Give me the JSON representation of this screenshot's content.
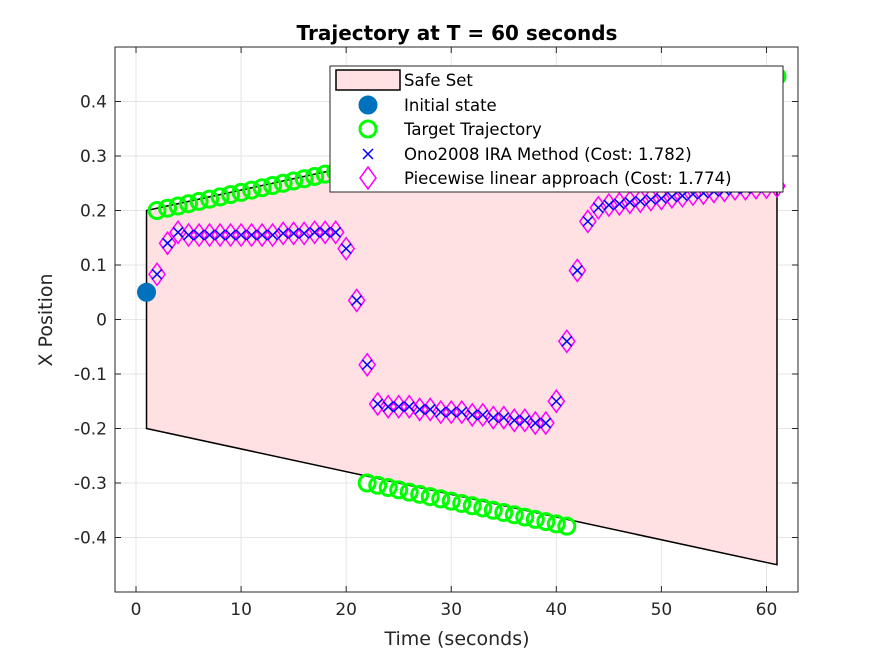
{
  "chart_data": {
    "type": "scatter",
    "title": "Trajectory at T = 60 seconds",
    "xlabel": "Time (seconds)",
    "ylabel": "X Position",
    "xlim": [
      -2,
      63
    ],
    "ylim": [
      -0.5,
      0.5
    ],
    "xticks": [
      0,
      10,
      20,
      30,
      40,
      50,
      60
    ],
    "yticks": [
      -0.4,
      -0.3,
      -0.2,
      -0.1,
      0,
      0.1,
      0.2,
      0.3,
      0.4
    ],
    "xtick_labels": [
      "0",
      "10",
      "20",
      "30",
      "40",
      "50",
      "60"
    ],
    "ytick_labels": [
      "-0.4",
      "-0.3",
      "-0.2",
      "-0.1",
      "0",
      "0.1",
      "0.2",
      "0.3",
      "0.4"
    ],
    "grid": true,
    "legend_position": "top-right",
    "safe_set": {
      "name": "Safe Set",
      "polygon": [
        [
          1,
          0.2
        ],
        [
          61,
          0.45
        ],
        [
          61,
          -0.45
        ],
        [
          1,
          -0.2
        ]
      ],
      "fill": "#ffe0e3",
      "edge": "#000000"
    },
    "series": [
      {
        "name": "Initial state",
        "marker": "filled-circle",
        "color": "#0072bd",
        "x": [
          1
        ],
        "y": [
          0.05
        ]
      },
      {
        "name": "Target Trajectory",
        "marker": "circle",
        "color": "#00ff00",
        "x": [
          2,
          3,
          4,
          5,
          6,
          7,
          8,
          9,
          10,
          11,
          12,
          13,
          14,
          15,
          16,
          17,
          18,
          19,
          20,
          21,
          22,
          23,
          24,
          25,
          26,
          27,
          28,
          29,
          30,
          31,
          32,
          33,
          34,
          35,
          36,
          37,
          38,
          39,
          40,
          41,
          42,
          43,
          44,
          45,
          46,
          47,
          48,
          49,
          50,
          51,
          52,
          53,
          54,
          55,
          56,
          57,
          58,
          59,
          60,
          61
        ],
        "y": [
          0.2,
          0.2042,
          0.2083,
          0.2125,
          0.2167,
          0.2208,
          0.225,
          0.2292,
          0.2333,
          0.2375,
          0.2417,
          0.2458,
          0.25,
          0.2542,
          0.2583,
          0.2625,
          0.2667,
          0.2708,
          0.275,
          0.2792,
          -0.3,
          -0.3042,
          -0.3083,
          -0.3125,
          -0.3167,
          -0.3208,
          -0.325,
          -0.3292,
          -0.3333,
          -0.3375,
          -0.3417,
          -0.3458,
          -0.35,
          -0.3542,
          -0.3583,
          -0.3625,
          -0.3667,
          -0.3708,
          -0.375,
          -0.3792,
          0.37,
          0.374,
          0.378,
          0.382,
          0.386,
          0.39,
          0.394,
          0.398,
          0.402,
          0.406,
          0.41,
          0.414,
          0.418,
          0.422,
          0.426,
          0.43,
          0.434,
          0.438,
          0.442,
          0.446
        ]
      },
      {
        "name": "Ono2008 IRA Method (Cost: 1.782)",
        "marker": "x",
        "color": "#0000ff",
        "x": [
          2,
          3,
          4,
          5,
          6,
          7,
          8,
          9,
          10,
          11,
          12,
          13,
          14,
          15,
          16,
          17,
          18,
          19,
          20,
          21,
          22,
          23,
          24,
          25,
          26,
          27,
          28,
          29,
          30,
          31,
          32,
          33,
          34,
          35,
          36,
          37,
          38,
          39,
          40,
          41,
          42,
          43,
          44,
          45,
          46,
          47,
          48,
          49,
          50,
          51,
          52,
          53,
          54,
          55,
          56,
          57,
          58,
          59,
          60,
          61
        ],
        "y": [
          0.083,
          0.14,
          0.16,
          0.155,
          0.155,
          0.155,
          0.155,
          0.155,
          0.155,
          0.155,
          0.155,
          0.155,
          0.158,
          0.158,
          0.158,
          0.16,
          0.16,
          0.16,
          0.13,
          0.035,
          -0.083,
          -0.155,
          -0.16,
          -0.16,
          -0.16,
          -0.165,
          -0.165,
          -0.17,
          -0.17,
          -0.17,
          -0.175,
          -0.175,
          -0.18,
          -0.18,
          -0.185,
          -0.185,
          -0.19,
          -0.19,
          -0.15,
          -0.04,
          0.09,
          0.18,
          0.205,
          0.21,
          0.212,
          0.215,
          0.217,
          0.22,
          0.222,
          0.225,
          0.227,
          0.23,
          0.232,
          0.235,
          0.237,
          0.24,
          0.24,
          0.242,
          0.243,
          0.245
        ]
      },
      {
        "name": "Piecewise linear approach (Cost: 1.774)",
        "marker": "diamond",
        "color": "#ff00ff",
        "x": [
          2,
          3,
          4,
          5,
          6,
          7,
          8,
          9,
          10,
          11,
          12,
          13,
          14,
          15,
          16,
          17,
          18,
          19,
          20,
          21,
          22,
          23,
          24,
          25,
          26,
          27,
          28,
          29,
          30,
          31,
          32,
          33,
          34,
          35,
          36,
          37,
          38,
          39,
          40,
          41,
          42,
          43,
          44,
          45,
          46,
          47,
          48,
          49,
          50,
          51,
          52,
          53,
          54,
          55,
          56,
          57,
          58,
          59,
          60,
          61
        ],
        "y": [
          0.083,
          0.14,
          0.16,
          0.155,
          0.155,
          0.155,
          0.155,
          0.155,
          0.155,
          0.155,
          0.155,
          0.155,
          0.158,
          0.158,
          0.158,
          0.16,
          0.16,
          0.16,
          0.13,
          0.035,
          -0.083,
          -0.155,
          -0.16,
          -0.16,
          -0.16,
          -0.165,
          -0.165,
          -0.17,
          -0.17,
          -0.17,
          -0.175,
          -0.175,
          -0.18,
          -0.18,
          -0.185,
          -0.185,
          -0.19,
          -0.19,
          -0.15,
          -0.04,
          0.09,
          0.18,
          0.205,
          0.21,
          0.212,
          0.215,
          0.217,
          0.22,
          0.222,
          0.225,
          0.227,
          0.23,
          0.232,
          0.235,
          0.237,
          0.24,
          0.24,
          0.242,
          0.243,
          0.245
        ]
      }
    ]
  }
}
